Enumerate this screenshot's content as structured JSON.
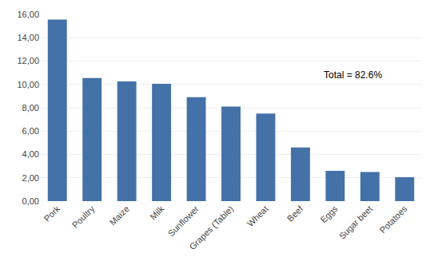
{
  "chart_data": {
    "type": "bar",
    "categories": [
      "Pork",
      "Poultry",
      "Maize",
      "Milk",
      "Sunflower",
      "Grapes (Table)",
      "Wheat",
      "Beef",
      "Eggs",
      "Sugar beet",
      "Potatoes"
    ],
    "values": [
      15.55,
      10.55,
      10.25,
      10.05,
      8.9,
      8.1,
      7.5,
      4.6,
      2.6,
      2.5,
      2.05
    ],
    "color": "#4472a8",
    "annotation": "Total = 82.6%",
    "ylim": [
      0,
      16
    ],
    "yticks": [
      {
        "value": 0,
        "label": "0,00"
      },
      {
        "value": 2,
        "label": "2,00"
      },
      {
        "value": 4,
        "label": "4,00"
      },
      {
        "value": 6,
        "label": "6,00"
      },
      {
        "value": 8,
        "label": "8,00"
      },
      {
        "value": 10,
        "label": "10,00"
      },
      {
        "value": 12,
        "label": "12,00"
      },
      {
        "value": 14,
        "label": "14,00"
      },
      {
        "value": 16,
        "label": "16,00"
      }
    ],
    "grid": true
  }
}
